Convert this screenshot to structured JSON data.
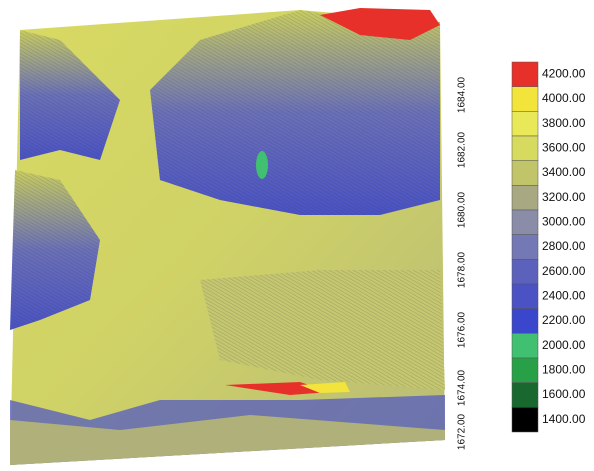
{
  "axis": {
    "ticks": [
      "1684.00",
      "1682.00",
      "1680.00",
      "1678.00",
      "1676.00",
      "1674.00",
      "1672.00"
    ]
  },
  "legend": {
    "items": [
      {
        "label": "4200.00",
        "color": "#e8302a"
      },
      {
        "label": "4000.00",
        "color": "#f2e43a"
      },
      {
        "label": "3800.00",
        "color": "#e8e858"
      },
      {
        "label": "3600.00",
        "color": "#d6da5e"
      },
      {
        "label": "3400.00",
        "color": "#c2c46a"
      },
      {
        "label": "3200.00",
        "color": "#a8a882"
      },
      {
        "label": "3000.00",
        "color": "#8a8ca8"
      },
      {
        "label": "2800.00",
        "color": "#7478b4"
      },
      {
        "label": "2600.00",
        "color": "#5c62bc"
      },
      {
        "label": "2400.00",
        "color": "#4a52c4"
      },
      {
        "label": "2200.00",
        "color": "#3a46cc"
      },
      {
        "label": "2000.00",
        "color": "#40c070"
      },
      {
        "label": "1800.00",
        "color": "#28a048"
      },
      {
        "label": "1600.00",
        "color": "#186830"
      },
      {
        "label": "1400.00",
        "color": "#000000"
      }
    ]
  }
}
